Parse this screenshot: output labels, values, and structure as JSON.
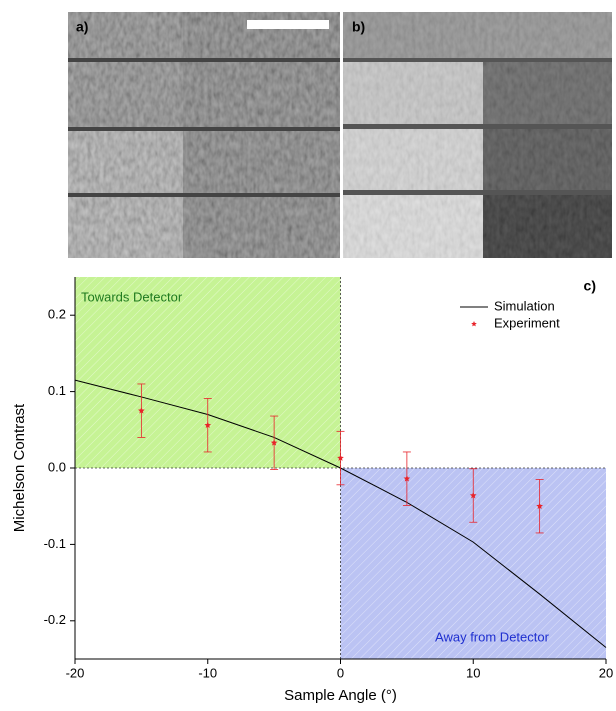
{
  "panels": {
    "a": "a)",
    "b": "b)"
  },
  "chart_data": {
    "type": "line",
    "panel_label": "c)",
    "xlabel": "Sample Angle (°)",
    "ylabel": "Michelson Contrast",
    "xlim": [
      -20,
      20
    ],
    "ylim": [
      -0.25,
      0.25
    ],
    "xticks": [
      -20,
      -10,
      0,
      10,
      20
    ],
    "yticks": [
      -0.2,
      -0.1,
      {
        "value": 0,
        "label": "0.0"
      },
      0.1,
      0.2
    ],
    "regions": [
      {
        "label": "Towards Detector",
        "color": "#b8f07a"
      },
      {
        "label": "Away from Detector",
        "color": "#aab4f0"
      }
    ],
    "legend": "top-right",
    "series": [
      {
        "name": "Simulation",
        "color": "#000000",
        "style": "line",
        "x": [
          -20,
          -15,
          -10,
          -5,
          0,
          5,
          10,
          15,
          20
        ],
        "values": [
          0.115,
          0.093,
          0.07,
          0.04,
          0,
          -0.045,
          -0.097,
          -0.165,
          -0.235
        ]
      },
      {
        "name": "Experiment",
        "color": "#e8232a",
        "style": "marker",
        "x": [
          -15,
          -10,
          -5,
          0,
          5,
          10,
          15
        ],
        "values": [
          0.075,
          0.056,
          0.033,
          0.013,
          -0.014,
          -0.036,
          -0.05
        ],
        "errors": [
          0.035,
          0.035,
          0.035,
          0.035,
          0.035,
          0.035,
          0.035
        ]
      }
    ]
  }
}
